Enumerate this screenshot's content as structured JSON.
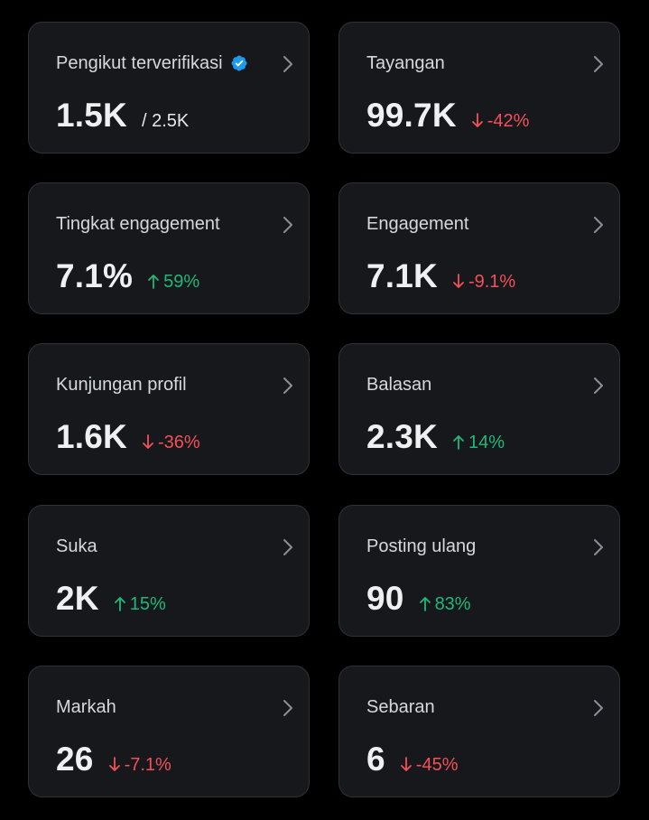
{
  "colors": {
    "background": "#000000",
    "card": "#16181c",
    "card_border": "#2f3336",
    "up": "#1fb87a",
    "down": "#f4505a",
    "verified": "#1d9bf0"
  },
  "cards": [
    {
      "label": "Pengikut terverifikasi",
      "value": "1.5K",
      "secondary": "/ 2.5K",
      "verified_icon": "verified-badge-icon",
      "chevron_icon": "chevron-right-icon"
    },
    {
      "label": "Tayangan",
      "value": "99.7K",
      "change": "-42%",
      "direction": "down",
      "chevron_icon": "chevron-right-icon"
    },
    {
      "label": "Tingkat engagement",
      "value": "7.1%",
      "change": "59%",
      "direction": "up",
      "chevron_icon": "chevron-right-icon"
    },
    {
      "label": "Engagement",
      "value": "7.1K",
      "change": "-9.1%",
      "direction": "down",
      "chevron_icon": "chevron-right-icon"
    },
    {
      "label": "Kunjungan profil",
      "value": "1.6K",
      "change": "-36%",
      "direction": "down",
      "chevron_icon": "chevron-right-icon"
    },
    {
      "label": "Balasan",
      "value": "2.3K",
      "change": "14%",
      "direction": "up",
      "chevron_icon": "chevron-right-icon"
    },
    {
      "label": "Suka",
      "value": "2K",
      "change": "15%",
      "direction": "up",
      "chevron_icon": "chevron-right-icon"
    },
    {
      "label": "Posting ulang",
      "value": "90",
      "change": "83%",
      "direction": "up",
      "chevron_icon": "chevron-right-icon"
    },
    {
      "label": "Markah",
      "value": "26",
      "change": "-7.1%",
      "direction": "down",
      "chevron_icon": "chevron-right-icon"
    },
    {
      "label": "Sebaran",
      "value": "6",
      "change": "-45%",
      "direction": "down",
      "chevron_icon": "chevron-right-icon"
    }
  ]
}
